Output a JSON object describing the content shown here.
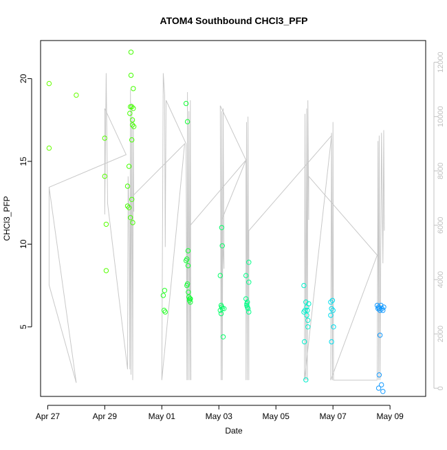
{
  "chart_data": {
    "type": "scatter",
    "title": "ATOM4 Southbound CHCl3_PFP",
    "xlabel": "Date",
    "ylabel": "CHCl3_PFP",
    "x_ticks": [
      "Apr 27",
      "Apr 29",
      "May 01",
      "May 03",
      "May 05",
      "May 07",
      "May 09"
    ],
    "y_ticks": [
      5,
      10,
      15,
      20
    ],
    "y2_ticks": [
      0,
      2000,
      4000,
      6000,
      8000,
      10000,
      12000
    ],
    "xlim_days": [
      -0.25,
      13.25
    ],
    "ylim": [
      0.8,
      22.3
    ],
    "y2lim": [
      -300,
      12800
    ],
    "grid": false,
    "legend": "none",
    "series": [
      {
        "kind": "points",
        "points": [
          [
            0.05,
            19.7,
            "#66ff00"
          ],
          [
            0.05,
            15.8,
            "#66ff00"
          ],
          [
            1.0,
            19.0,
            "#66ff00"
          ],
          [
            2.0,
            16.4,
            "#55ff00"
          ],
          [
            2.0,
            14.1,
            "#55ff00"
          ],
          [
            2.05,
            11.2,
            "#55ff00"
          ],
          [
            2.05,
            8.4,
            "#55ff00"
          ],
          [
            2.8,
            13.5,
            "#44ff00"
          ],
          [
            2.8,
            12.3,
            "#44ff00"
          ],
          [
            2.85,
            14.7,
            "#44ff00"
          ],
          [
            2.85,
            12.2,
            "#44ff00"
          ],
          [
            2.88,
            17.9,
            "#44ff00"
          ],
          [
            2.9,
            11.6,
            "#44ff00"
          ],
          [
            2.9,
            18.3,
            "#44ff00"
          ],
          [
            2.92,
            21.6,
            "#44ff00"
          ],
          [
            2.92,
            20.2,
            "#44ff00"
          ],
          [
            2.95,
            16.3,
            "#44ff00"
          ],
          [
            2.95,
            18.3,
            "#44ff00"
          ],
          [
            2.97,
            17.5,
            "#44ff00"
          ],
          [
            2.97,
            17.2,
            "#44ff00"
          ],
          [
            3.0,
            19.4,
            "#44ff00"
          ],
          [
            3.0,
            18.2,
            "#44ff00"
          ],
          [
            3.02,
            17.1,
            "#44ff00"
          ],
          [
            2.95,
            12.7,
            "#44ff00"
          ],
          [
            2.98,
            11.3,
            "#44ff00"
          ],
          [
            4.05,
            6.9,
            "#22ff22"
          ],
          [
            4.08,
            6.0,
            "#22ff22"
          ],
          [
            4.1,
            7.2,
            "#22ff22"
          ],
          [
            4.12,
            5.9,
            "#22ff22"
          ],
          [
            4.85,
            18.5,
            "#11ff33"
          ],
          [
            4.9,
            17.4,
            "#11ff33"
          ],
          [
            4.85,
            9.0,
            "#11ff33"
          ],
          [
            4.88,
            9.1,
            "#11ff33"
          ],
          [
            4.92,
            9.6,
            "#11ff33"
          ],
          [
            4.92,
            8.7,
            "#11ff33"
          ],
          [
            4.88,
            7.5,
            "#11ff33"
          ],
          [
            4.9,
            7.6,
            "#11ff33"
          ],
          [
            4.93,
            7.1,
            "#11ff33"
          ],
          [
            4.95,
            6.8,
            "#11ff33"
          ],
          [
            4.97,
            6.6,
            "#11ff33"
          ],
          [
            4.98,
            6.7,
            "#11ff33"
          ],
          [
            5.0,
            6.5,
            "#11ff33"
          ],
          [
            5.0,
            6.7,
            "#11ff33"
          ],
          [
            6.05,
            8.1,
            "#00ff66"
          ],
          [
            6.08,
            6.3,
            "#00ff66"
          ],
          [
            6.1,
            11.0,
            "#00ff66"
          ],
          [
            6.12,
            9.9,
            "#00ff66"
          ],
          [
            6.05,
            6.0,
            "#00ff66"
          ],
          [
            6.08,
            5.8,
            "#00ff66"
          ],
          [
            6.1,
            6.2,
            "#00ff66"
          ],
          [
            6.12,
            6.1,
            "#00ff66"
          ],
          [
            6.15,
            4.4,
            "#00ff66"
          ],
          [
            6.18,
            6.1,
            "#00ff66"
          ],
          [
            6.95,
            8.1,
            "#00ff88"
          ],
          [
            6.95,
            6.7,
            "#00ff88"
          ],
          [
            6.98,
            6.4,
            "#00ff88"
          ],
          [
            7.0,
            6.2,
            "#00ff88"
          ],
          [
            7.0,
            6.5,
            "#00ff88"
          ],
          [
            7.02,
            6.1,
            "#00ff88"
          ],
          [
            7.05,
            5.9,
            "#00ff88"
          ],
          [
            7.05,
            7.7,
            "#00ff88"
          ],
          [
            7.05,
            8.9,
            "#00ff88"
          ],
          [
            6.98,
            6.3,
            "#00ff88"
          ],
          [
            8.98,
            7.5,
            "#00eecc"
          ],
          [
            8.98,
            5.9,
            "#00eecc"
          ],
          [
            9.0,
            4.1,
            "#00eecc"
          ],
          [
            9.02,
            6.0,
            "#00eecc"
          ],
          [
            9.05,
            6.5,
            "#00eecc"
          ],
          [
            9.05,
            1.8,
            "#00eecc"
          ],
          [
            9.08,
            5.7,
            "#00eecc"
          ],
          [
            9.1,
            6.0,
            "#00eecc"
          ],
          [
            9.12,
            5.0,
            "#00eecc"
          ],
          [
            9.15,
            6.4,
            "#00eecc"
          ],
          [
            9.08,
            6.2,
            "#00eecc"
          ],
          [
            9.12,
            5.4,
            "#00eecc"
          ],
          [
            9.92,
            6.5,
            "#00ddee"
          ],
          [
            9.95,
            6.1,
            "#00ddee"
          ],
          [
            9.92,
            5.7,
            "#00ddee"
          ],
          [
            9.95,
            4.1,
            "#00ddee"
          ],
          [
            9.98,
            6.6,
            "#00ddee"
          ],
          [
            10.0,
            6.0,
            "#00ddee"
          ],
          [
            10.02,
            5.0,
            "#00ddee"
          ],
          [
            11.55,
            6.3,
            "#1199ff"
          ],
          [
            11.58,
            6.1,
            "#1199ff"
          ],
          [
            11.6,
            6.2,
            "#1199ff"
          ],
          [
            11.62,
            6.1,
            "#1199ff"
          ],
          [
            11.65,
            6.0,
            "#1199ff"
          ],
          [
            11.68,
            6.3,
            "#1199ff"
          ],
          [
            11.72,
            6.1,
            "#1199ff"
          ],
          [
            11.75,
            6.0,
            "#1199ff"
          ],
          [
            11.78,
            6.2,
            "#1199ff"
          ],
          [
            11.6,
            1.3,
            "#1199ff"
          ],
          [
            11.62,
            2.1,
            "#1199ff"
          ],
          [
            11.65,
            4.5,
            "#1199ff"
          ],
          [
            11.7,
            1.5,
            "#1199ff"
          ],
          [
            11.75,
            1.1,
            "#1199ff"
          ]
        ]
      },
      {
        "kind": "line",
        "axis": "y2",
        "color": "#c8c8c8",
        "points": [
          [
            0.05,
            7400
          ],
          [
            0.05,
            3800
          ],
          [
            1.0,
            200
          ],
          [
            1.0,
            200
          ],
          [
            0.05,
            7400
          ],
          [
            2.75,
            8600
          ],
          [
            2.0,
            10300
          ],
          [
            2.0,
            6400
          ],
          [
            2.05,
            11600
          ],
          [
            2.1,
            6800
          ],
          [
            2.8,
            700
          ],
          [
            2.82,
            7800
          ],
          [
            2.85,
            6600
          ],
          [
            2.88,
            700
          ],
          [
            2.9,
            11000
          ],
          [
            2.92,
            500
          ],
          [
            2.95,
            10500
          ],
          [
            2.98,
            300
          ],
          [
            3.0,
            9900
          ],
          [
            3.02,
            6500
          ],
          [
            3.0,
            7100
          ],
          [
            4.8,
            9000
          ],
          [
            4.0,
            300
          ],
          [
            4.05,
            11600
          ],
          [
            4.1,
            10800
          ],
          [
            4.12,
            5200
          ],
          [
            4.15,
            10600
          ],
          [
            4.85,
            9000
          ],
          [
            4.88,
            300
          ],
          [
            4.9,
            10900
          ],
          [
            4.92,
            300
          ],
          [
            4.95,
            10200
          ],
          [
            4.98,
            300
          ],
          [
            5.0,
            10600
          ],
          [
            5.02,
            300
          ],
          [
            5.0,
            6000
          ],
          [
            6.95,
            8400
          ],
          [
            6.05,
            10400
          ],
          [
            6.08,
            300
          ],
          [
            6.1,
            10200
          ],
          [
            6.12,
            300
          ],
          [
            6.15,
            10300
          ],
          [
            6.18,
            4400
          ],
          [
            6.1,
            6200
          ],
          [
            6.95,
            8400
          ],
          [
            6.95,
            300
          ],
          [
            6.97,
            9800
          ],
          [
            7.0,
            300
          ],
          [
            7.02,
            10000
          ],
          [
            7.05,
            300
          ],
          [
            7.05,
            5800
          ],
          [
            9.95,
            9300
          ],
          [
            9.0,
            300
          ],
          [
            9.02,
            10100
          ],
          [
            9.05,
            300
          ],
          [
            9.08,
            10300
          ],
          [
            9.1,
            300
          ],
          [
            9.12,
            10600
          ],
          [
            9.15,
            6200
          ],
          [
            9.15,
            7800
          ],
          [
            11.55,
            4900
          ],
          [
            9.92,
            300
          ],
          [
            9.95,
            9400
          ],
          [
            9.98,
            300
          ],
          [
            10.0,
            9800
          ],
          [
            10.02,
            300
          ],
          [
            11.55,
            300
          ],
          [
            11.58,
            9100
          ],
          [
            11.6,
            300
          ],
          [
            11.62,
            9300
          ],
          [
            11.65,
            300
          ],
          [
            11.7,
            9400
          ],
          [
            11.75,
            4600
          ],
          [
            11.78,
            9500
          ],
          [
            11.8,
            5800
          ]
        ]
      }
    ]
  }
}
